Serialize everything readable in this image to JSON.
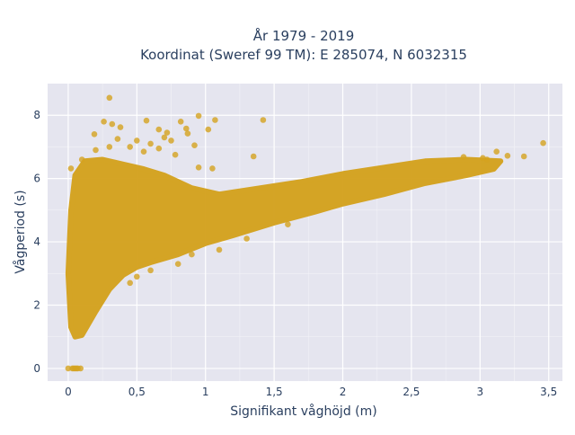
{
  "title_line1": "År 1979 - 2019",
  "title_line2": "Koordinat (Sweref 99 TM): E 285074, N 6032315",
  "chart_data": {
    "type": "scatter",
    "xlabel": "Signifikant våghöjd (m)",
    "ylabel": "Vågperiod (s)",
    "xlim": [
      -0.15,
      3.6
    ],
    "ylim": [
      -0.4,
      9.0
    ],
    "xticks": [
      0,
      0.5,
      1,
      1.5,
      2,
      2.5,
      3,
      3.5
    ],
    "xtick_labels": [
      "0",
      "0,5",
      "1",
      "1,5",
      "2",
      "2,5",
      "3",
      "3,5"
    ],
    "yticks": [
      0,
      2,
      4,
      6,
      8
    ],
    "ytick_labels": [
      "0",
      "2",
      "4",
      "6",
      "8"
    ],
    "grid": true,
    "marker_color": "#d4a21f",
    "plot_background": "#e5e5ef",
    "dense_cloud_outline": [
      [
        0.02,
        1.3
      ],
      [
        0.05,
        1.0
      ],
      [
        0.1,
        1.05
      ],
      [
        0.2,
        1.8
      ],
      [
        0.3,
        2.5
      ],
      [
        0.4,
        2.95
      ],
      [
        0.5,
        3.2
      ],
      [
        0.6,
        3.35
      ],
      [
        0.8,
        3.6
      ],
      [
        1.0,
        3.95
      ],
      [
        1.2,
        4.2
      ],
      [
        1.5,
        4.6
      ],
      [
        1.8,
        4.95
      ],
      [
        2.0,
        5.2
      ],
      [
        2.3,
        5.5
      ],
      [
        2.6,
        5.85
      ],
      [
        2.9,
        6.1
      ],
      [
        3.1,
        6.3
      ],
      [
        3.15,
        6.55
      ],
      [
        2.9,
        6.6
      ],
      [
        2.6,
        6.55
      ],
      [
        2.3,
        6.35
      ],
      [
        2.0,
        6.15
      ],
      [
        1.7,
        5.9
      ],
      [
        1.4,
        5.7
      ],
      [
        1.1,
        5.5
      ],
      [
        0.9,
        5.7
      ],
      [
        0.7,
        6.1
      ],
      [
        0.55,
        6.3
      ],
      [
        0.4,
        6.45
      ],
      [
        0.25,
        6.6
      ],
      [
        0.12,
        6.55
      ],
      [
        0.05,
        6.1
      ],
      [
        0.02,
        5.0
      ],
      [
        0.0,
        3.0
      ]
    ],
    "outlier_points": [
      [
        0.3,
        8.55
      ],
      [
        0.26,
        7.8
      ],
      [
        0.32,
        7.72
      ],
      [
        0.38,
        7.62
      ],
      [
        0.57,
        7.83
      ],
      [
        0.72,
        7.45
      ],
      [
        0.82,
        7.8
      ],
      [
        0.95,
        7.98
      ],
      [
        1.07,
        7.85
      ],
      [
        1.42,
        7.85
      ],
      [
        0.66,
        7.55
      ],
      [
        0.86,
        7.58
      ],
      [
        0.19,
        7.4
      ],
      [
        0.36,
        7.25
      ],
      [
        0.5,
        7.2
      ],
      [
        0.6,
        7.1
      ],
      [
        0.7,
        7.3
      ],
      [
        0.75,
        7.2
      ],
      [
        0.87,
        7.42
      ],
      [
        1.02,
        7.55
      ],
      [
        0.92,
        7.05
      ],
      [
        1.35,
        6.7
      ],
      [
        0.95,
        6.35
      ],
      [
        1.05,
        6.32
      ],
      [
        0.1,
        6.6
      ],
      [
        0.02,
        6.32
      ],
      [
        0.2,
        6.9
      ],
      [
        0.3,
        7.0
      ],
      [
        0.45,
        7.0
      ],
      [
        0.55,
        6.85
      ],
      [
        0.66,
        6.95
      ],
      [
        0.78,
        6.75
      ],
      [
        3.05,
        6.6
      ],
      [
        3.2,
        6.72
      ],
      [
        3.32,
        6.7
      ],
      [
        3.46,
        7.12
      ],
      [
        3.02,
        6.65
      ],
      [
        3.12,
        6.85
      ],
      [
        2.88,
        6.68
      ],
      [
        0.0,
        0.0
      ],
      [
        0.03,
        0.0
      ],
      [
        0.05,
        0.0
      ],
      [
        0.07,
        0.0
      ],
      [
        0.09,
        0.0
      ],
      [
        0.04,
        0.0
      ],
      [
        0.06,
        0.0
      ],
      [
        0.5,
        2.9
      ],
      [
        0.45,
        2.7
      ],
      [
        0.9,
        3.6
      ],
      [
        0.8,
        3.3
      ],
      [
        1.3,
        4.1
      ],
      [
        1.6,
        4.55
      ],
      [
        1.1,
        3.75
      ],
      [
        0.6,
        3.1
      ]
    ]
  }
}
